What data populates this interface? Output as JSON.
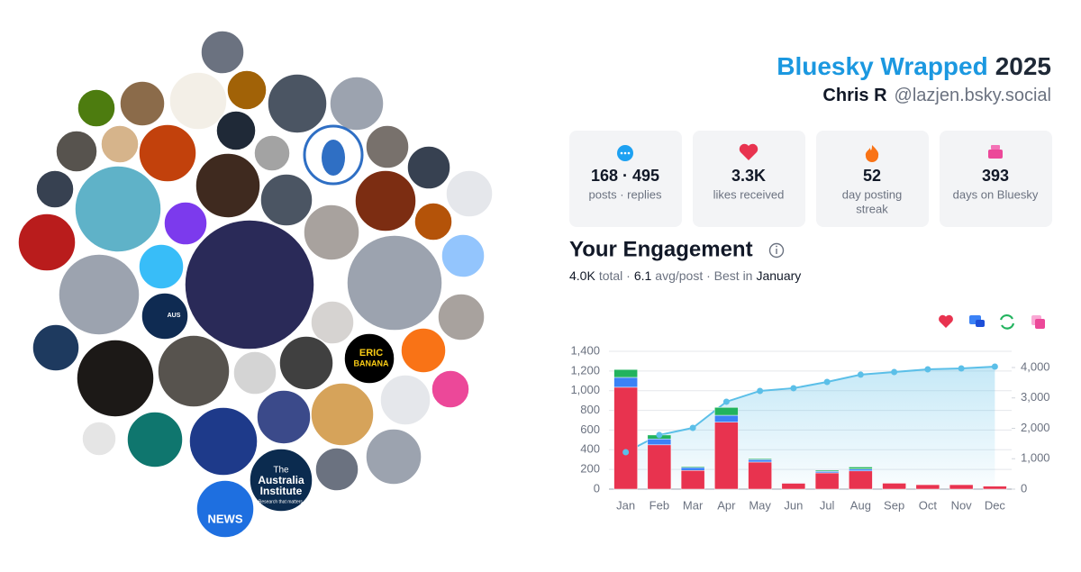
{
  "header": {
    "title_brand": "Bluesky Wrapped",
    "title_year": "2025",
    "name": "Chris R",
    "handle": "@lazjen.bsky.social"
  },
  "stats": [
    {
      "value": "168 · 495",
      "label": "posts · replies"
    },
    {
      "value": "3.3K",
      "label": "likes received"
    },
    {
      "value": "52",
      "label": "day posting",
      "label2": "streak"
    },
    {
      "value": "393",
      "label": "days on Bluesky"
    }
  ],
  "engagement": {
    "title": "Your Engagement",
    "total": "4.0K",
    "total_label": "total ·",
    "avg": "6.1",
    "avg_label": "avg/post · Best in",
    "best": "January"
  },
  "avatars": {
    "news": "NEWS",
    "institute_1": "The",
    "institute_2": "Australia",
    "institute_3": "Institute",
    "institute_4": "Research that matters.",
    "eric": "ERIC",
    "banana": "BANANA",
    "aus": "AUS"
  },
  "chart_data": {
    "type": "bar",
    "categories": [
      "Jan",
      "Feb",
      "Mar",
      "Apr",
      "May",
      "Jun",
      "Jul",
      "Aug",
      "Sep",
      "Oct",
      "Nov",
      "Dec"
    ],
    "series": [
      {
        "color": "#e8334f",
        "values": [
          1035,
          450,
          190,
          680,
          275,
          60,
          165,
          185,
          60,
          45,
          45,
          30
        ]
      },
      {
        "color": "#3b82f6",
        "values": [
          100,
          60,
          30,
          70,
          25,
          5,
          15,
          20,
          0,
          0,
          0,
          0
        ]
      },
      {
        "color": "#22b35e",
        "values": [
          80,
          40,
          10,
          80,
          10,
          0,
          12,
          20,
          0,
          0,
          0,
          0
        ]
      },
      {
        "type": "line",
        "axis": "y2",
        "color": "#5bbfe8",
        "values": [
          1215,
          1780,
          2015,
          2875,
          3230,
          3320,
          3525,
          3765,
          3850,
          3940,
          3970,
          4030
        ]
      }
    ],
    "ylim": [
      0,
      1400
    ],
    "yticks": [
      0,
      200,
      400,
      600,
      800,
      {
        "value": 1000,
        "label": "1,000"
      },
      {
        "value": 1200,
        "label": "1,200"
      },
      {
        "value": 1400,
        "label": "1,400"
      }
    ],
    "y2lim": [
      0,
      4533
    ],
    "y2ticks": [
      0,
      {
        "value": 1000,
        "label": "1,000"
      },
      {
        "value": 2000,
        "label": "2,000"
      },
      {
        "value": 3000,
        "label": "3,000"
      },
      {
        "value": 4000,
        "label": "4,000"
      }
    ],
    "grid": true
  }
}
